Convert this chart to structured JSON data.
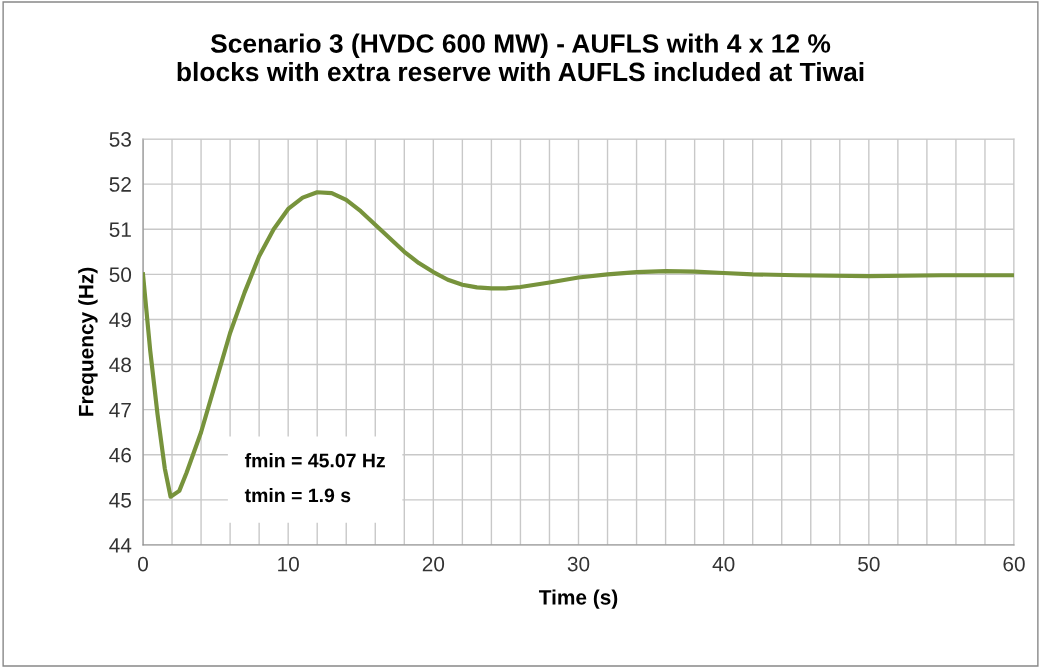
{
  "chart_data": {
    "type": "line",
    "title": "Scenario 3 (HVDC 600 MW) - AUFLS with 4 x 12 %\nblocks with extra reserve with AUFLS included at Tiwai",
    "xlabel": "Time (s)",
    "ylabel": "Frequency (Hz)",
    "annotations": [
      "fmin = 45.07 Hz",
      "tmin = 1.9 s"
    ],
    "grid": true,
    "legend": false,
    "marker": "none",
    "line_style": "solid",
    "xlim": [
      0,
      60
    ],
    "ylim": [
      44,
      53
    ],
    "xticks": [
      0,
      {
        "value": 2,
        "label": null
      },
      {
        "value": 4,
        "label": null
      },
      {
        "value": 6,
        "label": null
      },
      {
        "value": 8,
        "label": null
      },
      10,
      {
        "value": 12,
        "label": null
      },
      {
        "value": 14,
        "label": null
      },
      {
        "value": 16,
        "label": null
      },
      {
        "value": 18,
        "label": null
      },
      20,
      {
        "value": 22,
        "label": null
      },
      {
        "value": 24,
        "label": null
      },
      {
        "value": 26,
        "label": null
      },
      {
        "value": 28,
        "label": null
      },
      30,
      {
        "value": 32,
        "label": null
      },
      {
        "value": 34,
        "label": null
      },
      {
        "value": 36,
        "label": null
      },
      {
        "value": 38,
        "label": null
      },
      40,
      {
        "value": 42,
        "label": null
      },
      {
        "value": 44,
        "label": null
      },
      {
        "value": 46,
        "label": null
      },
      {
        "value": 48,
        "label": null
      },
      50,
      {
        "value": 52,
        "label": null
      },
      {
        "value": 54,
        "label": null
      },
      {
        "value": 56,
        "label": null
      },
      {
        "value": 58,
        "label": null
      },
      60
    ],
    "yticks": [
      44,
      45,
      46,
      47,
      48,
      49,
      50,
      51,
      52,
      53
    ],
    "series": [
      {
        "color": "#77933c",
        "x": [
          0,
          0.5,
          1,
          1.5,
          1.9,
          2.5,
          3,
          4,
          5,
          6,
          7,
          8,
          9,
          10,
          11,
          12,
          13,
          14,
          15,
          16,
          17,
          18,
          19,
          20,
          21,
          22,
          23,
          24,
          25,
          26,
          28,
          30,
          32,
          34,
          36,
          38,
          40,
          42,
          45,
          50,
          55,
          60
        ],
        "values": [
          50,
          48.3,
          46.9,
          45.7,
          45.07,
          45.2,
          45.6,
          46.5,
          47.6,
          48.7,
          49.6,
          50.4,
          51.0,
          51.45,
          51.7,
          51.82,
          51.8,
          51.65,
          51.4,
          51.1,
          50.8,
          50.5,
          50.25,
          50.05,
          49.88,
          49.77,
          49.71,
          49.69,
          49.69,
          49.72,
          49.82,
          49.93,
          50.0,
          50.05,
          50.07,
          50.06,
          50.03,
          50.0,
          49.98,
          49.96,
          49.98,
          49.98
        ]
      }
    ]
  }
}
